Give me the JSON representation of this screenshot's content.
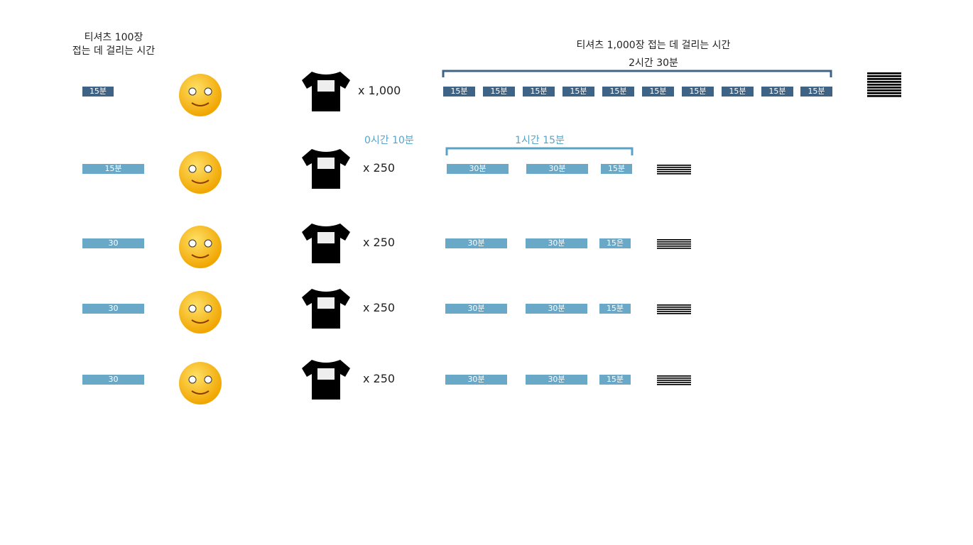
{
  "header": {
    "left_title": [
      "티셔츠 100장",
      "접는 데 걸리는 시간"
    ],
    "right_title": "티셔츠 1,000장 접는 데 걸리는 시간",
    "right_total": "2시간 30분"
  },
  "annotations": {
    "solo_time": "0시간 10분",
    "team_total": "1시간 15분"
  },
  "rows": [
    {
      "left": "15분",
      "count": "x 1,000",
      "segments": [
        "15분",
        "15분",
        "15분",
        "15분",
        "15분",
        "15분",
        "15분",
        "15분",
        "15분",
        "15분"
      ]
    },
    {
      "left": "15분",
      "count": "x 250",
      "segments": [
        "30분",
        "30분",
        "15분"
      ]
    },
    {
      "left": "30",
      "count": "x 250",
      "segments": [
        "30분",
        "30분",
        "15은"
      ]
    },
    {
      "left": "30",
      "count": "x 250",
      "segments": [
        "30분",
        "30분",
        "15분"
      ]
    },
    {
      "left": "30",
      "count": "x 250",
      "segments": [
        "30분",
        "30분",
        "15분"
      ]
    }
  ]
}
